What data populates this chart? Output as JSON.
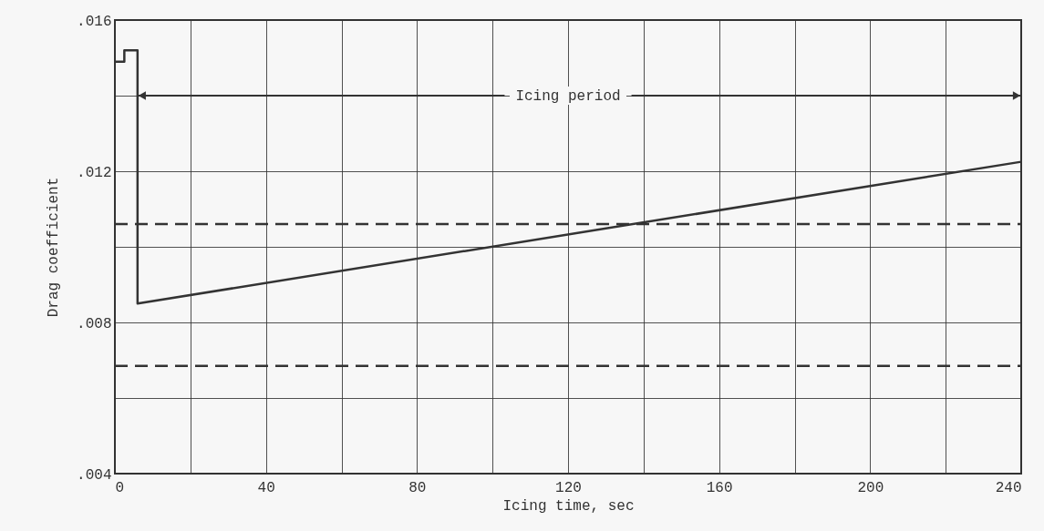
{
  "chart_data": {
    "type": "line",
    "xlabel": "Icing time, sec",
    "ylabel": "Drag coefficient",
    "xlim": [
      0,
      240
    ],
    "ylim": [
      0.004,
      0.016
    ],
    "xticks": [
      0,
      {
        "value": 20,
        "label": null
      },
      40,
      {
        "value": 60,
        "label": null
      },
      80,
      {
        "value": 100,
        "label": null
      },
      120,
      {
        "value": 140,
        "label": null
      },
      160,
      {
        "value": 180,
        "label": null
      },
      200,
      {
        "value": 220,
        "label": null
      },
      240
    ],
    "yticks": [
      {
        "value": 0.004,
        "label": ".004"
      },
      {
        "value": 0.006,
        "label": null
      },
      {
        "value": 0.008,
        "label": ".008"
      },
      {
        "value": 0.01,
        "label": null
      },
      {
        "value": 0.012,
        "label": ".012"
      },
      {
        "value": 0.014,
        "label": null
      },
      {
        "value": 0.016,
        "label": ".016"
      }
    ],
    "grid": true,
    "series": [
      {
        "color": "#333333",
        "line_style": "solid",
        "x": [
          0,
          2.5,
          2.5,
          6,
          6,
          240
        ],
        "values": [
          0.0149,
          0.0149,
          0.0152,
          0.0152,
          0.0085,
          0.01225
        ]
      },
      {
        "color": "#333333",
        "line_style": "dashed",
        "x": [
          0,
          240
        ],
        "values": [
          0.0106,
          0.0106
        ]
      },
      {
        "color": "#333333",
        "line_style": "dashed",
        "x": [
          0,
          240
        ],
        "values": [
          0.00685,
          0.00685
        ]
      }
    ],
    "annotations": [
      "Icing period"
    ]
  }
}
